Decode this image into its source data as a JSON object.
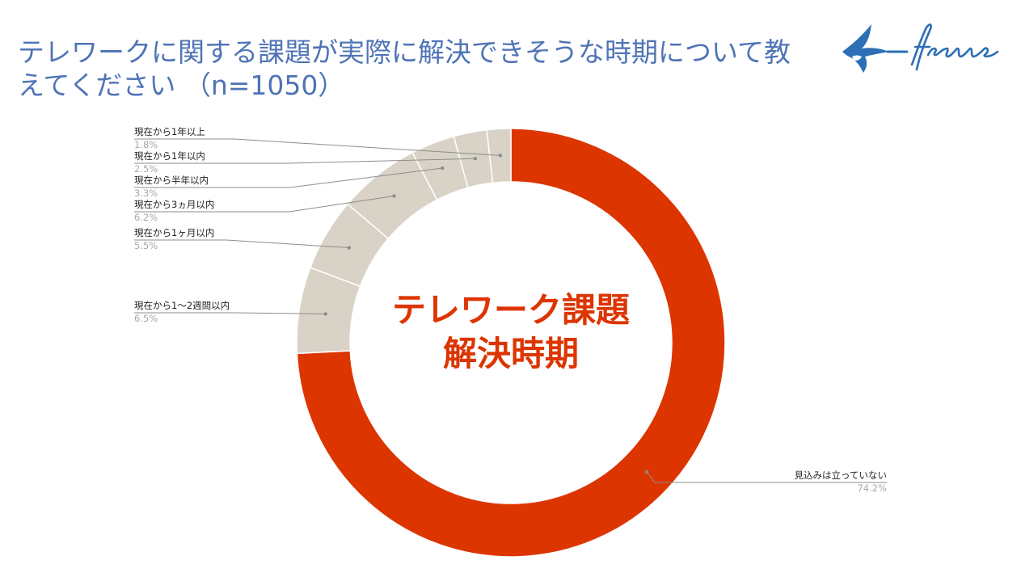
{
  "header": {
    "title": "テレワークに関する課題が実際に解決できそうな時期について教えてください （n=1050）",
    "logo_text": "freee"
  },
  "colors": {
    "title": "#4f74b6",
    "accent": "#dd3500",
    "muted_slice": "#d8d3c6",
    "leader": "#8c8c8c",
    "label": "#222222",
    "value": "#a8a8a8",
    "logo": "#2c6fb6"
  },
  "chart_data": {
    "type": "pie",
    "donut": true,
    "center_text": [
      "テレワーク課題",
      "解決時期"
    ],
    "categories": [
      "見込みは立っていない",
      "現在から1〜2週間以内",
      "現在から1ヶ月以内",
      "現在から3ヵ月以内",
      "現在から半年以内",
      "現在から1年以内",
      "現在から1年以上"
    ],
    "values": [
      74.2,
      6.5,
      5.5,
      6.2,
      3.3,
      2.5,
      1.8
    ],
    "display_values": [
      "74.2%",
      "6.5%",
      "5.5%",
      "6.2%",
      "3.3%",
      "2.5%",
      "1.8%"
    ],
    "n": 1050
  }
}
